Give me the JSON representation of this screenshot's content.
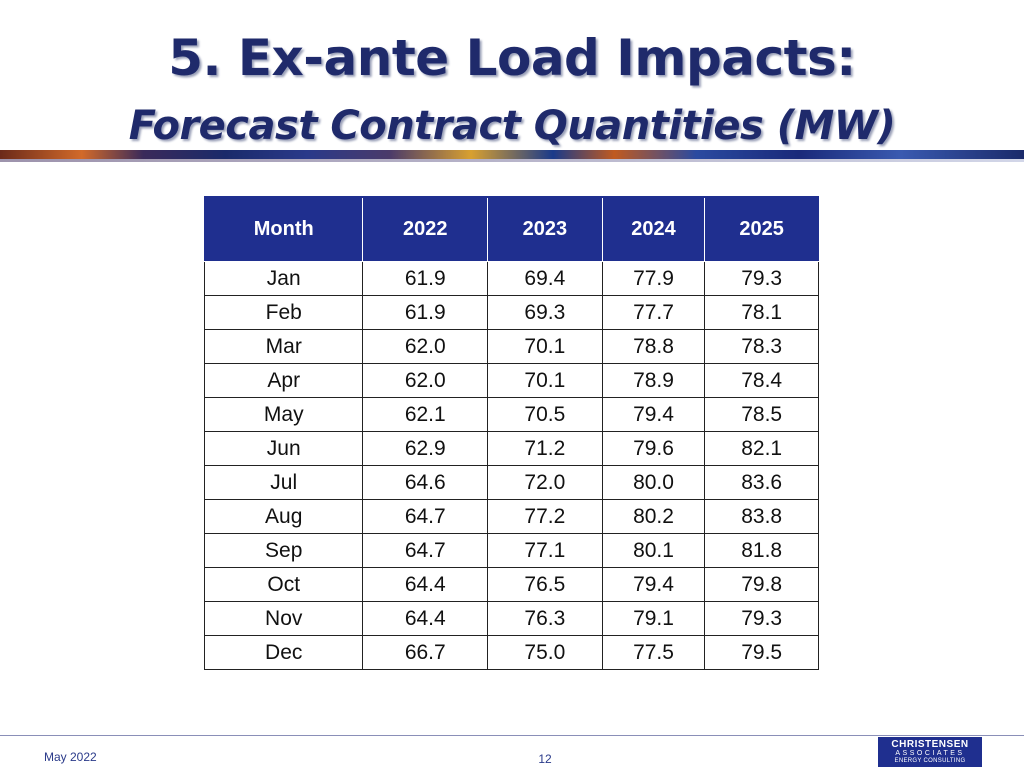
{
  "slide": {
    "title": "5. Ex-ante Load Impacts:",
    "subtitle": "Forecast Contract Quantities (MW)"
  },
  "table": {
    "headers": [
      "Month",
      "2022",
      "2023",
      "2024",
      "2025"
    ],
    "rows": [
      [
        "Jan",
        "61.9",
        "69.4",
        "77.9",
        "79.3"
      ],
      [
        "Feb",
        "61.9",
        "69.3",
        "77.7",
        "78.1"
      ],
      [
        "Mar",
        "62.0",
        "70.1",
        "78.8",
        "78.3"
      ],
      [
        "Apr",
        "62.0",
        "70.1",
        "78.9",
        "78.4"
      ],
      [
        "May",
        "62.1",
        "70.5",
        "79.4",
        "78.5"
      ],
      [
        "Jun",
        "62.9",
        "71.2",
        "79.6",
        "82.1"
      ],
      [
        "Jul",
        "64.6",
        "72.0",
        "80.0",
        "83.6"
      ],
      [
        "Aug",
        "64.7",
        "77.2",
        "80.2",
        "83.8"
      ],
      [
        "Sep",
        "64.7",
        "77.1",
        "80.1",
        "81.8"
      ],
      [
        "Oct",
        "64.4",
        "76.5",
        "79.4",
        "79.8"
      ],
      [
        "Nov",
        "64.4",
        "76.3",
        "79.1",
        "79.3"
      ],
      [
        "Dec",
        "66.7",
        "75.0",
        "77.5",
        "79.5"
      ]
    ]
  },
  "footer": {
    "date": "May 2022",
    "page": "12",
    "logo_line1": "CHRISTENSEN",
    "logo_line2": "ASSOCIATES",
    "logo_line3": "ENERGY CONSULTING"
  },
  "colors": {
    "title": "#1f2a6b",
    "header_bg": "#1f2f8f"
  }
}
